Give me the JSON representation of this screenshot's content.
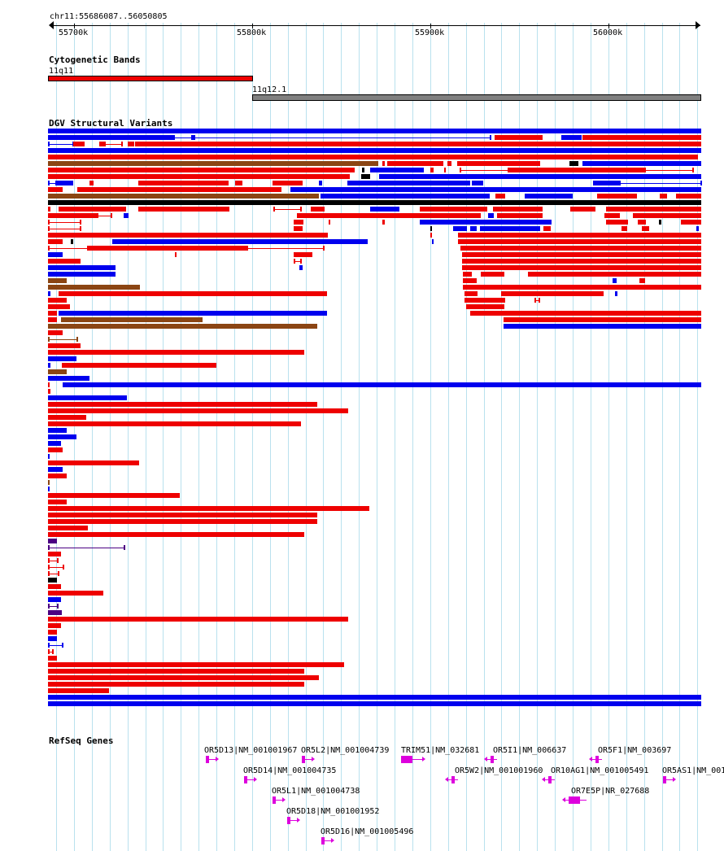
{
  "locus": "chr11:55686087..56050805",
  "ruler": {
    "ticks": [
      "55700k",
      "55800k",
      "55900k",
      "56000k"
    ]
  },
  "tracks": {
    "cytobands": {
      "title": "Cytogenetic Bands",
      "bands": [
        "11q11",
        "11q12.1"
      ]
    },
    "dgv": {
      "title": "DGV Structural Variants"
    },
    "refseq": {
      "title": "RefSeq Genes",
      "genes": [
        "OR5D13|NM_001001967",
        "OR5L2|NM_001004739",
        "TRIM51|NM_032681",
        "OR5I1|NM_006637",
        "OR5F1|NM_003697",
        "OR5D14|NM_001004735",
        "OR5W2|NM_001001960",
        "OR10AG1|NM_001005491",
        "OR5AS1|NM_001",
        "OR5L1|NM_001004738",
        "OR7E5P|NR_027688",
        "OR5D18|NM_001001952",
        "OR5D16|NM_001005496"
      ]
    }
  },
  "colors": {
    "gain": "#ee0000",
    "loss": "#0000ee",
    "inversion": "#8b4513",
    "complex": "#000000",
    "other": "#4b0082",
    "gene": "#dd00dd",
    "band_q11": "#ee0000",
    "band_q12": "#808080",
    "grid": "#b9e1ee"
  }
}
